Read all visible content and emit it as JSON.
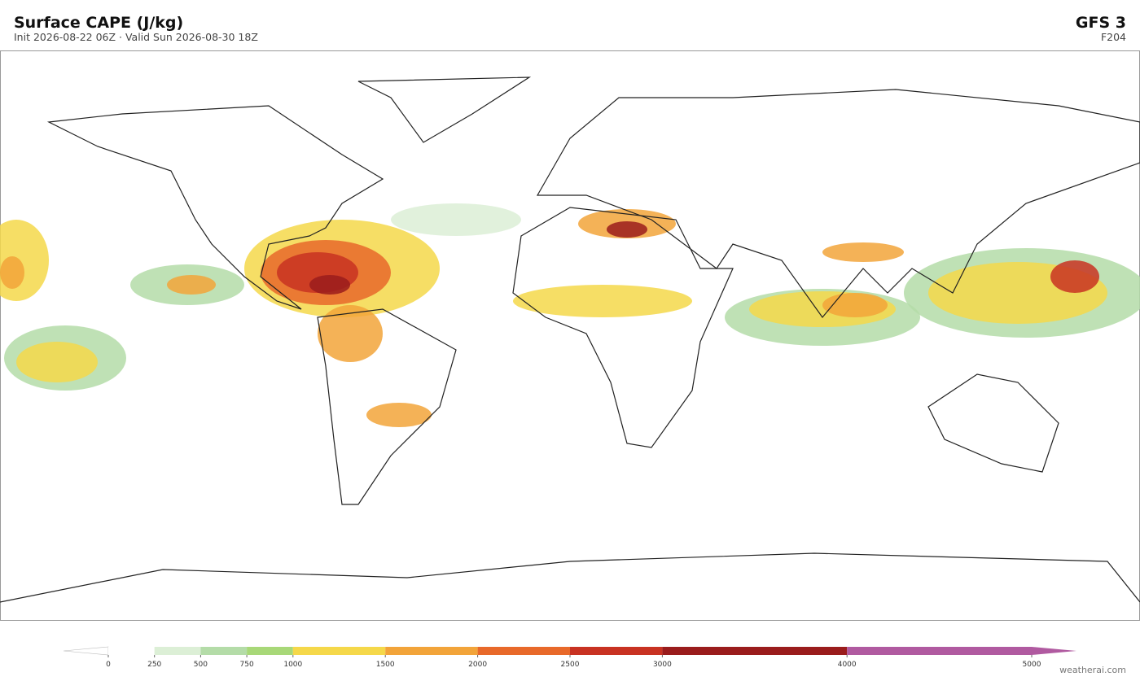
{
  "header": {
    "title": "Surface CAPE  (J/kg)",
    "subtitle": "Init 2026-08-22 06Z  ·  Valid Sun 2026-08-30 18Z",
    "model": "GFS  3",
    "forecast_hour": "F204"
  },
  "colorbar": {
    "ticks": [
      0,
      250,
      500,
      750,
      1000,
      1500,
      2000,
      2500,
      3000,
      4000,
      5000
    ],
    "colors": [
      "#ffffff",
      "#dcefd6",
      "#b4dca8",
      "#a8d878",
      "#f5d84a",
      "#f2a43a",
      "#e8692a",
      "#c83222",
      "#9a1c1c",
      "#b05aa0"
    ],
    "under_color": "#ffffff",
    "over_color": "#b05aa0"
  },
  "footer": {
    "credit": "weatherai.com"
  }
}
